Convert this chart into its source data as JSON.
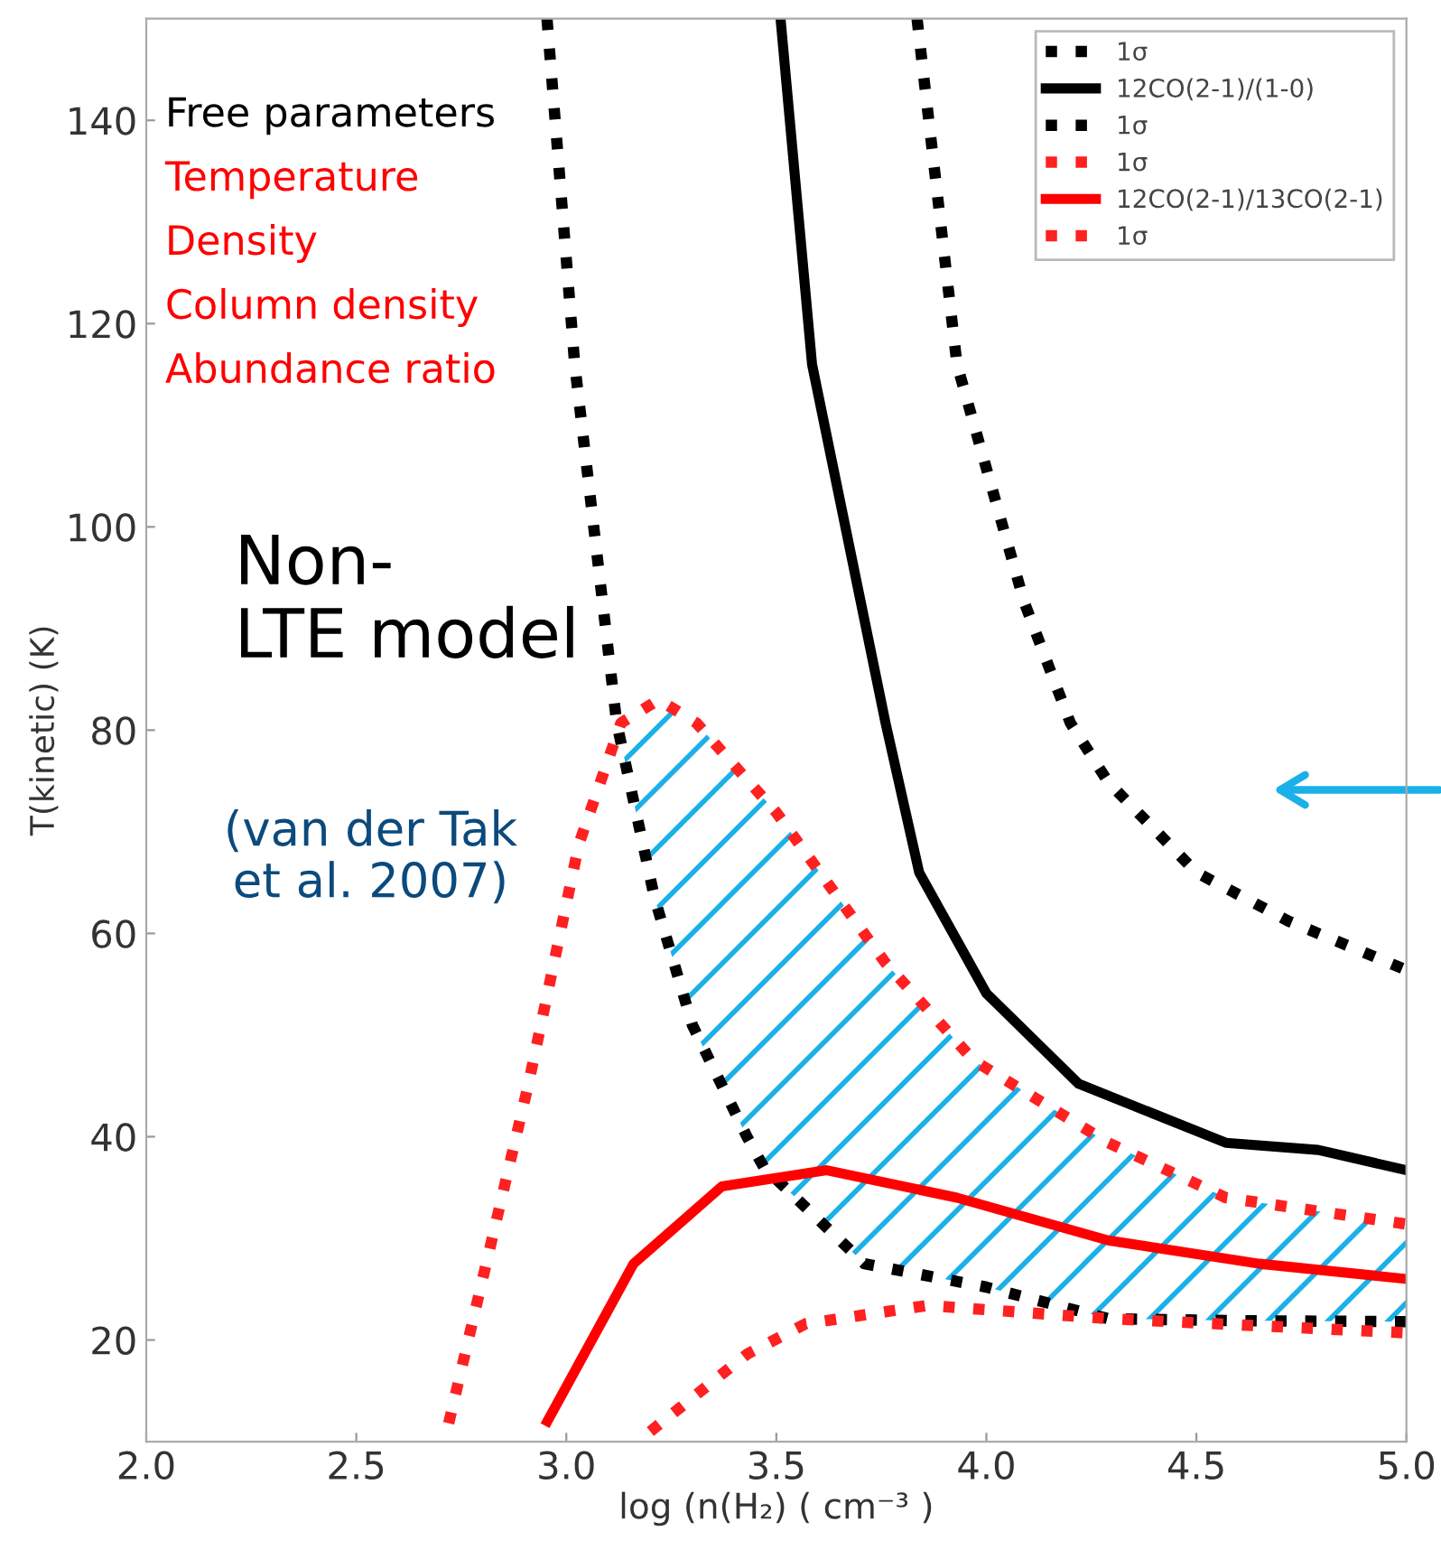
{
  "chart_data": {
    "type": "line",
    "xlabel": "log (n(H₂) ( cm⁻³ )",
    "ylabel": "T(kinetic) (K)",
    "xlim": [
      2.0,
      5.0
    ],
    "xticks": [
      {
        "value": 2.0,
        "label": "2.0"
      },
      {
        "value": 2.5,
        "label": "2.5"
      },
      {
        "value": 3.0,
        "label": "3.0"
      },
      {
        "value": 3.5,
        "label": "3.5"
      },
      {
        "value": 4.0,
        "label": "4.0"
      },
      {
        "value": 4.5,
        "label": "4.5"
      },
      {
        "value": 5.0,
        "label": "5.0"
      }
    ],
    "ylim": [
      10,
      150
    ],
    "yticks": [
      20,
      40,
      60,
      80,
      100,
      120,
      140
    ],
    "legend": "top right",
    "series": [
      {
        "name": "1σ",
        "color": "#000000",
        "line_style": "dotted",
        "x": [
          2.954,
          3.02,
          3.12,
          3.21,
          3.3,
          3.43,
          3.47,
          3.71,
          4.0,
          4.29,
          4.6,
          5.0
        ],
        "values": [
          150,
          116,
          80.7,
          63.5,
          51,
          40,
          37,
          27.5,
          25.2,
          22.1,
          21.9,
          21.8
        ]
      },
      {
        "name": "12CO(2-1)/(1-0)",
        "color": "#000000",
        "line_style": "solid",
        "x": [
          3.51,
          3.585,
          3.76,
          3.84,
          4.0,
          4.22,
          4.57,
          4.79,
          5.0
        ],
        "values": [
          150,
          116,
          80.7,
          66,
          54.1,
          45.2,
          39.4,
          38.7,
          36.7
        ]
      },
      {
        "name": "1σ",
        "color": "#000000",
        "line_style": "dotted",
        "x": [
          3.835,
          3.93,
          4.09,
          4.2,
          4.29,
          4.5,
          4.72,
          5.0
        ],
        "values": [
          150,
          116,
          92.6,
          80.7,
          74.9,
          66,
          61.2,
          56.4
        ]
      },
      {
        "name": "1σ",
        "color": "#ff2020",
        "line_style": "dotted",
        "x": [
          2.72,
          2.91,
          3.03,
          3.13,
          3.22,
          3.31,
          3.5,
          3.76,
          3.97,
          4.29,
          4.57,
          5.0
        ],
        "values": [
          11.8,
          45.2,
          68.8,
          80.7,
          83,
          80.7,
          71.9,
          57.1,
          47.5,
          39.4,
          34,
          31.4
        ]
      },
      {
        "name": "12CO(2-1)/13CO(2-1)",
        "color": "#ff0000",
        "line_style": "solid",
        "x": [
          2.955,
          3.16,
          3.37,
          3.62,
          3.93,
          4.29,
          4.65,
          5.0
        ],
        "values": [
          12,
          27.5,
          35.1,
          36.7,
          34,
          29.8,
          27.5,
          26
        ]
      },
      {
        "name": "1σ",
        "color": "#ff2020",
        "line_style": "dotted",
        "x": [
          3.2,
          3.43,
          3.57,
          3.86,
          4.29,
          5.0
        ],
        "values": [
          11,
          18.6,
          21.6,
          23.4,
          22.1,
          20.7
        ]
      }
    ],
    "annotations": [
      "Free parameters",
      "Temperature",
      "Density",
      "Column density",
      "Abundance ratio",
      "Non-\nLTE model",
      "(van der Tak\net al. 2007)"
    ]
  }
}
